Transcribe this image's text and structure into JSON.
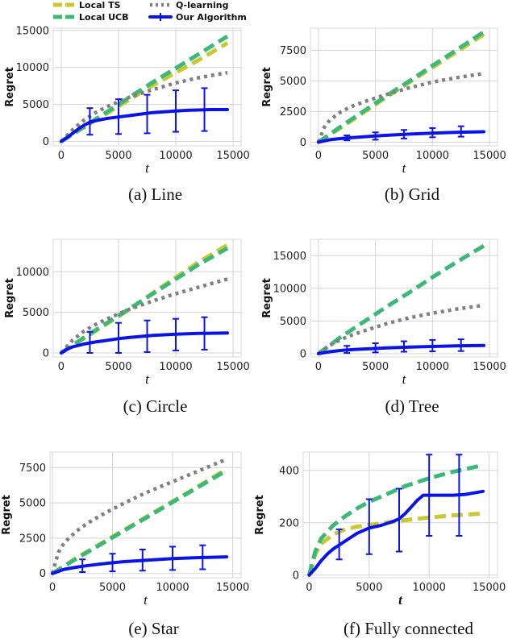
{
  "legend": {
    "entries": [
      {
        "label": "Local TS",
        "color": "#c8c832",
        "style": "dashed"
      },
      {
        "label": "Q-learning",
        "color": "#808080",
        "style": "dotted"
      },
      {
        "label": "Local UCB",
        "color": "#3cb878",
        "style": "dashed"
      },
      {
        "label": "Our Algorithm",
        "color": "#0a14e6",
        "style": "solid-errorbar"
      }
    ],
    "placement": "top"
  },
  "chart_data": [
    {
      "type": "line",
      "caption": "(a) Line",
      "xlabel": "t",
      "ylabel": "Regret",
      "xlim": [
        -700,
        15700
      ],
      "ylim": [
        -600,
        15300
      ],
      "xticks": [
        0,
        5000,
        10000,
        15000
      ],
      "yticks": [
        0,
        5000,
        10000,
        15000
      ],
      "grid": true,
      "series": [
        {
          "name": "Local TS",
          "x": [
            0,
            2000,
            4000,
            6000,
            8000,
            10000,
            12000,
            14500
          ],
          "y": [
            0,
            1900,
            3800,
            5700,
            7600,
            9300,
            11000,
            13300
          ]
        },
        {
          "name": "Local UCB",
          "x": [
            0,
            2000,
            4000,
            6000,
            8000,
            10000,
            12000,
            14500
          ],
          "y": [
            0,
            2000,
            4000,
            6000,
            8000,
            9900,
            11800,
            14200
          ]
        },
        {
          "name": "Q-learning",
          "x": [
            0,
            1000,
            2000,
            3000,
            4000,
            6000,
            8000,
            10000,
            12000,
            14500
          ],
          "y": [
            0,
            1600,
            2900,
            3900,
            4700,
            6000,
            7000,
            7900,
            8600,
            9300
          ]
        },
        {
          "name": "Our Algorithm",
          "x": [
            0,
            500,
            1000,
            1500,
            2000,
            2500,
            3000,
            4000,
            5000,
            6000,
            7000,
            8000,
            9000,
            10000,
            11000,
            12000,
            13000,
            14500
          ],
          "y": [
            0,
            500,
            1100,
            1700,
            2200,
            2600,
            2800,
            3100,
            3300,
            3500,
            3700,
            3900,
            4000,
            4100,
            4200,
            4250,
            4300,
            4300
          ],
          "errorbars": [
            {
              "x": 2500,
              "lo": 900,
              "hi": 4500
            },
            {
              "x": 5000,
              "lo": 1000,
              "hi": 5700
            },
            {
              "x": 7500,
              "lo": 1100,
              "hi": 6300
            },
            {
              "x": 10000,
              "lo": 1300,
              "hi": 6900
            },
            {
              "x": 12500,
              "lo": 1400,
              "hi": 7200
            }
          ]
        }
      ]
    },
    {
      "type": "line",
      "caption": "(b) Grid",
      "xlabel": "t",
      "ylabel": "Regret",
      "xlim": [
        -700,
        15700
      ],
      "ylim": [
        -300,
        9300
      ],
      "xticks": [
        0,
        5000,
        10000,
        15000
      ],
      "yticks": [
        0,
        2500,
        5000,
        7500
      ],
      "grid": true,
      "series": [
        {
          "name": "Local TS",
          "x": [
            0,
            2000,
            4000,
            6000,
            8000,
            10000,
            12000,
            14500
          ],
          "y": [
            0,
            1200,
            2450,
            3700,
            4900,
            6100,
            7300,
            8800
          ]
        },
        {
          "name": "Local UCB",
          "x": [
            0,
            2000,
            4000,
            6000,
            8000,
            10000,
            12000,
            14500
          ],
          "y": [
            0,
            1300,
            2550,
            3800,
            5000,
            6250,
            7450,
            9000
          ]
        },
        {
          "name": "Q-learning",
          "x": [
            0,
            500,
            1000,
            2000,
            3000,
            4000,
            6000,
            8000,
            10000,
            12000,
            14500
          ],
          "y": [
            0,
            1200,
            1800,
            2500,
            2950,
            3300,
            3900,
            4450,
            4900,
            5250,
            5600
          ]
        },
        {
          "name": "Our Algorithm",
          "x": [
            0,
            1000,
            2000,
            3000,
            4000,
            5000,
            6000,
            8000,
            10000,
            12000,
            14500
          ],
          "y": [
            0,
            200,
            300,
            380,
            440,
            500,
            560,
            660,
            740,
            800,
            850
          ],
          "errorbars": [
            {
              "x": 2500,
              "lo": 150,
              "hi": 550
            },
            {
              "x": 5000,
              "lo": 200,
              "hi": 800
            },
            {
              "x": 7500,
              "lo": 300,
              "hi": 1000
            },
            {
              "x": 10000,
              "lo": 400,
              "hi": 1150
            },
            {
              "x": 12500,
              "lo": 450,
              "hi": 1300
            }
          ]
        }
      ]
    },
    {
      "type": "line",
      "caption": "(c) Circle",
      "xlabel": "t",
      "ylabel": "Regret",
      "xlim": [
        -700,
        15700
      ],
      "ylim": [
        -500,
        14000
      ],
      "xticks": [
        0,
        5000,
        10000,
        15000
      ],
      "yticks": [
        0,
        5000,
        10000
      ],
      "grid": true,
      "series": [
        {
          "name": "Local TS",
          "x": [
            0,
            2000,
            4000,
            6000,
            8000,
            10000,
            12000,
            14500
          ],
          "y": [
            0,
            1800,
            3600,
            5400,
            7400,
            9300,
            11200,
            13300
          ]
        },
        {
          "name": "Local UCB",
          "x": [
            0,
            2000,
            4000,
            6000,
            8000,
            10000,
            12000,
            14500
          ],
          "y": [
            0,
            1900,
            3700,
            5500,
            7300,
            9100,
            10900,
            12900
          ]
        },
        {
          "name": "Q-learning",
          "x": [
            0,
            1000,
            2000,
            3000,
            4000,
            5000,
            6000,
            8000,
            10000,
            12000,
            14500
          ],
          "y": [
            0,
            1600,
            2700,
            3500,
            4200,
            4800,
            5400,
            6400,
            7300,
            8100,
            9100
          ]
        },
        {
          "name": "Our Algorithm",
          "x": [
            0,
            500,
            1000,
            2000,
            3000,
            4000,
            5000,
            6000,
            8000,
            10000,
            12000,
            14500
          ],
          "y": [
            0,
            450,
            750,
            1100,
            1350,
            1550,
            1750,
            1900,
            2150,
            2300,
            2400,
            2450
          ],
          "errorbars": [
            {
              "x": 2500,
              "lo": 0,
              "hi": 2600
            },
            {
              "x": 5000,
              "lo": 0,
              "hi": 3700
            },
            {
              "x": 7500,
              "lo": 100,
              "hi": 4000
            },
            {
              "x": 10000,
              "lo": 300,
              "hi": 4200
            },
            {
              "x": 12500,
              "lo": 400,
              "hi": 4400
            }
          ]
        }
      ]
    },
    {
      "type": "line",
      "caption": "(d) Tree",
      "xlabel": "t",
      "ylabel": "Regret",
      "xlim": [
        -700,
        15700
      ],
      "ylim": [
        -500,
        17500
      ],
      "xticks": [
        0,
        5000,
        10000,
        15000
      ],
      "yticks": [
        0,
        5000,
        10000,
        15000
      ],
      "grid": true,
      "series": [
        {
          "name": "Local UCB",
          "x": [
            0,
            2000,
            4000,
            6000,
            8000,
            10000,
            12000,
            14500
          ],
          "y": [
            0,
            2600,
            4900,
            7200,
            9400,
            11700,
            13900,
            16500
          ]
        },
        {
          "name": "Q-learning",
          "x": [
            0,
            1000,
            2000,
            3000,
            4000,
            6000,
            8000,
            10000,
            12000,
            14500
          ],
          "y": [
            0,
            1300,
            2200,
            2900,
            3500,
            4600,
            5500,
            6200,
            6800,
            7400
          ]
        },
        {
          "name": "Our Algorithm",
          "x": [
            0,
            1000,
            2000,
            3000,
            4000,
            5000,
            6000,
            8000,
            10000,
            12000,
            14500
          ],
          "y": [
            0,
            300,
            500,
            620,
            720,
            800,
            880,
            1000,
            1100,
            1200,
            1250
          ],
          "errorbars": [
            {
              "x": 2500,
              "lo": 100,
              "hi": 1200
            },
            {
              "x": 5000,
              "lo": 200,
              "hi": 1600
            },
            {
              "x": 7500,
              "lo": 300,
              "hi": 1900
            },
            {
              "x": 10000,
              "lo": 350,
              "hi": 2100
            },
            {
              "x": 12500,
              "lo": 400,
              "hi": 2200
            }
          ]
        }
      ]
    },
    {
      "type": "line",
      "caption": "(e) Star",
      "xlabel": "t",
      "ylabel": "Regret",
      "xlim": [
        -200,
        15700
      ],
      "ylim": [
        -300,
        8600
      ],
      "xticks": [
        0,
        5000,
        10000,
        15000
      ],
      "yticks": [
        0,
        2500,
        5000,
        7500
      ],
      "grid": true,
      "series": [
        {
          "name": "Local TS",
          "x": [
            0,
            2000,
            4000,
            6000,
            8000,
            10000,
            12000,
            14500
          ],
          "y": [
            0,
            1100,
            2100,
            3100,
            4100,
            5100,
            6100,
            7400
          ]
        },
        {
          "name": "Local UCB",
          "x": [
            0,
            2000,
            4000,
            6000,
            8000,
            10000,
            12000,
            14500
          ],
          "y": [
            0,
            1050,
            2050,
            3050,
            4050,
            5050,
            6050,
            7300
          ]
        },
        {
          "name": "Q-learning",
          "x": [
            0,
            500,
            1000,
            2000,
            3000,
            4000,
            6000,
            8000,
            10000,
            12000,
            14500
          ],
          "y": [
            0,
            1500,
            2200,
            3000,
            3600,
            4100,
            5000,
            5800,
            6500,
            7200,
            8100
          ]
        },
        {
          "name": "Our Algorithm",
          "x": [
            0,
            1000,
            2000,
            3000,
            4000,
            5000,
            6000,
            8000,
            10000,
            12000,
            14500
          ],
          "y": [
            0,
            300,
            450,
            570,
            670,
            760,
            840,
            950,
            1050,
            1120,
            1180
          ],
          "errorbars": [
            {
              "x": 2500,
              "lo": 100,
              "hi": 1000
            },
            {
              "x": 5000,
              "lo": 150,
              "hi": 1400
            },
            {
              "x": 7500,
              "lo": 200,
              "hi": 1700
            },
            {
              "x": 10000,
              "lo": 250,
              "hi": 1900
            },
            {
              "x": 12500,
              "lo": 300,
              "hi": 2000
            }
          ]
        }
      ]
    },
    {
      "type": "line",
      "caption": "(f) Fully connected",
      "xlabel": "t",
      "ylabel": "Regret",
      "xlim": [
        -500,
        15700
      ],
      "ylim": [
        -10,
        470
      ],
      "xticks": [
        0,
        5000,
        10000,
        15000
      ],
      "yticks": [
        0,
        200,
        400
      ],
      "grid": true,
      "series": [
        {
          "name": "Local TS",
          "x": [
            0,
            500,
            1000,
            2000,
            3000,
            4000,
            6000,
            8000,
            10000,
            12000,
            14500
          ],
          "y": [
            0,
            80,
            120,
            155,
            175,
            185,
            198,
            210,
            220,
            228,
            235
          ]
        },
        {
          "name": "Local UCB",
          "x": [
            0,
            500,
            1000,
            2000,
            3000,
            4000,
            5000,
            6000,
            8000,
            10000,
            12000,
            14500
          ],
          "y": [
            0,
            90,
            140,
            190,
            225,
            255,
            280,
            300,
            340,
            370,
            395,
            420
          ]
        },
        {
          "name": "Our Algorithm",
          "x": [
            0,
            500,
            1000,
            1500,
            2000,
            3000,
            4000,
            5000,
            6000,
            7000,
            7500,
            8000,
            8500,
            9000,
            9500,
            10000,
            11000,
            12000,
            13000,
            14500
          ],
          "y": [
            0,
            25,
            55,
            80,
            100,
            130,
            160,
            180,
            190,
            205,
            215,
            235,
            260,
            285,
            305,
            305,
            305,
            305,
            308,
            320
          ],
          "errorbars": [
            {
              "x": 2500,
              "lo": 60,
              "hi": 175
            },
            {
              "x": 5000,
              "lo": 80,
              "hi": 290
            },
            {
              "x": 7500,
              "lo": 90,
              "hi": 330
            },
            {
              "x": 10000,
              "lo": 150,
              "hi": 460
            },
            {
              "x": 12500,
              "lo": 150,
              "hi": 460
            }
          ]
        }
      ]
    }
  ]
}
